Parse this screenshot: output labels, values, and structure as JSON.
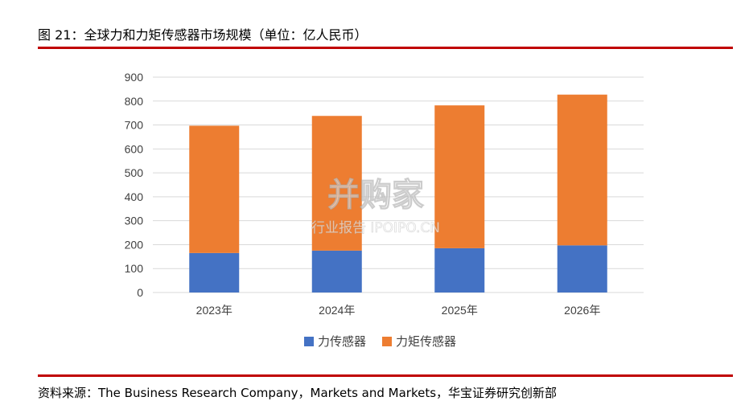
{
  "figure": {
    "title": "图 21：全球力和力矩传感器市场规模（单位：亿人民币）",
    "source": "资料来源：The Business Research Company，Markets and Markets，华宝证券研究创新部"
  },
  "watermark": {
    "brand": "并购家",
    "tagline": "行业报告 IPOIPO.CN"
  },
  "colors": {
    "force": "#4472c4",
    "torque": "#ed7d31",
    "rule": "#c00000",
    "grid": "#d9d9d9"
  },
  "chart_data": {
    "type": "bar",
    "stacked": true,
    "categories": [
      "2023年",
      "2024年",
      "2025年",
      "2026年"
    ],
    "series": [
      {
        "name": "力传感器",
        "values": [
          165,
          175,
          185,
          197
        ]
      },
      {
        "name": "力矩传感器",
        "values": [
          532,
          563,
          597,
          630
        ]
      }
    ],
    "ylim": [
      0,
      900
    ],
    "yticks": [
      0,
      100,
      200,
      300,
      400,
      500,
      600,
      700,
      800,
      900
    ],
    "grid": true,
    "legend": "bottom"
  }
}
